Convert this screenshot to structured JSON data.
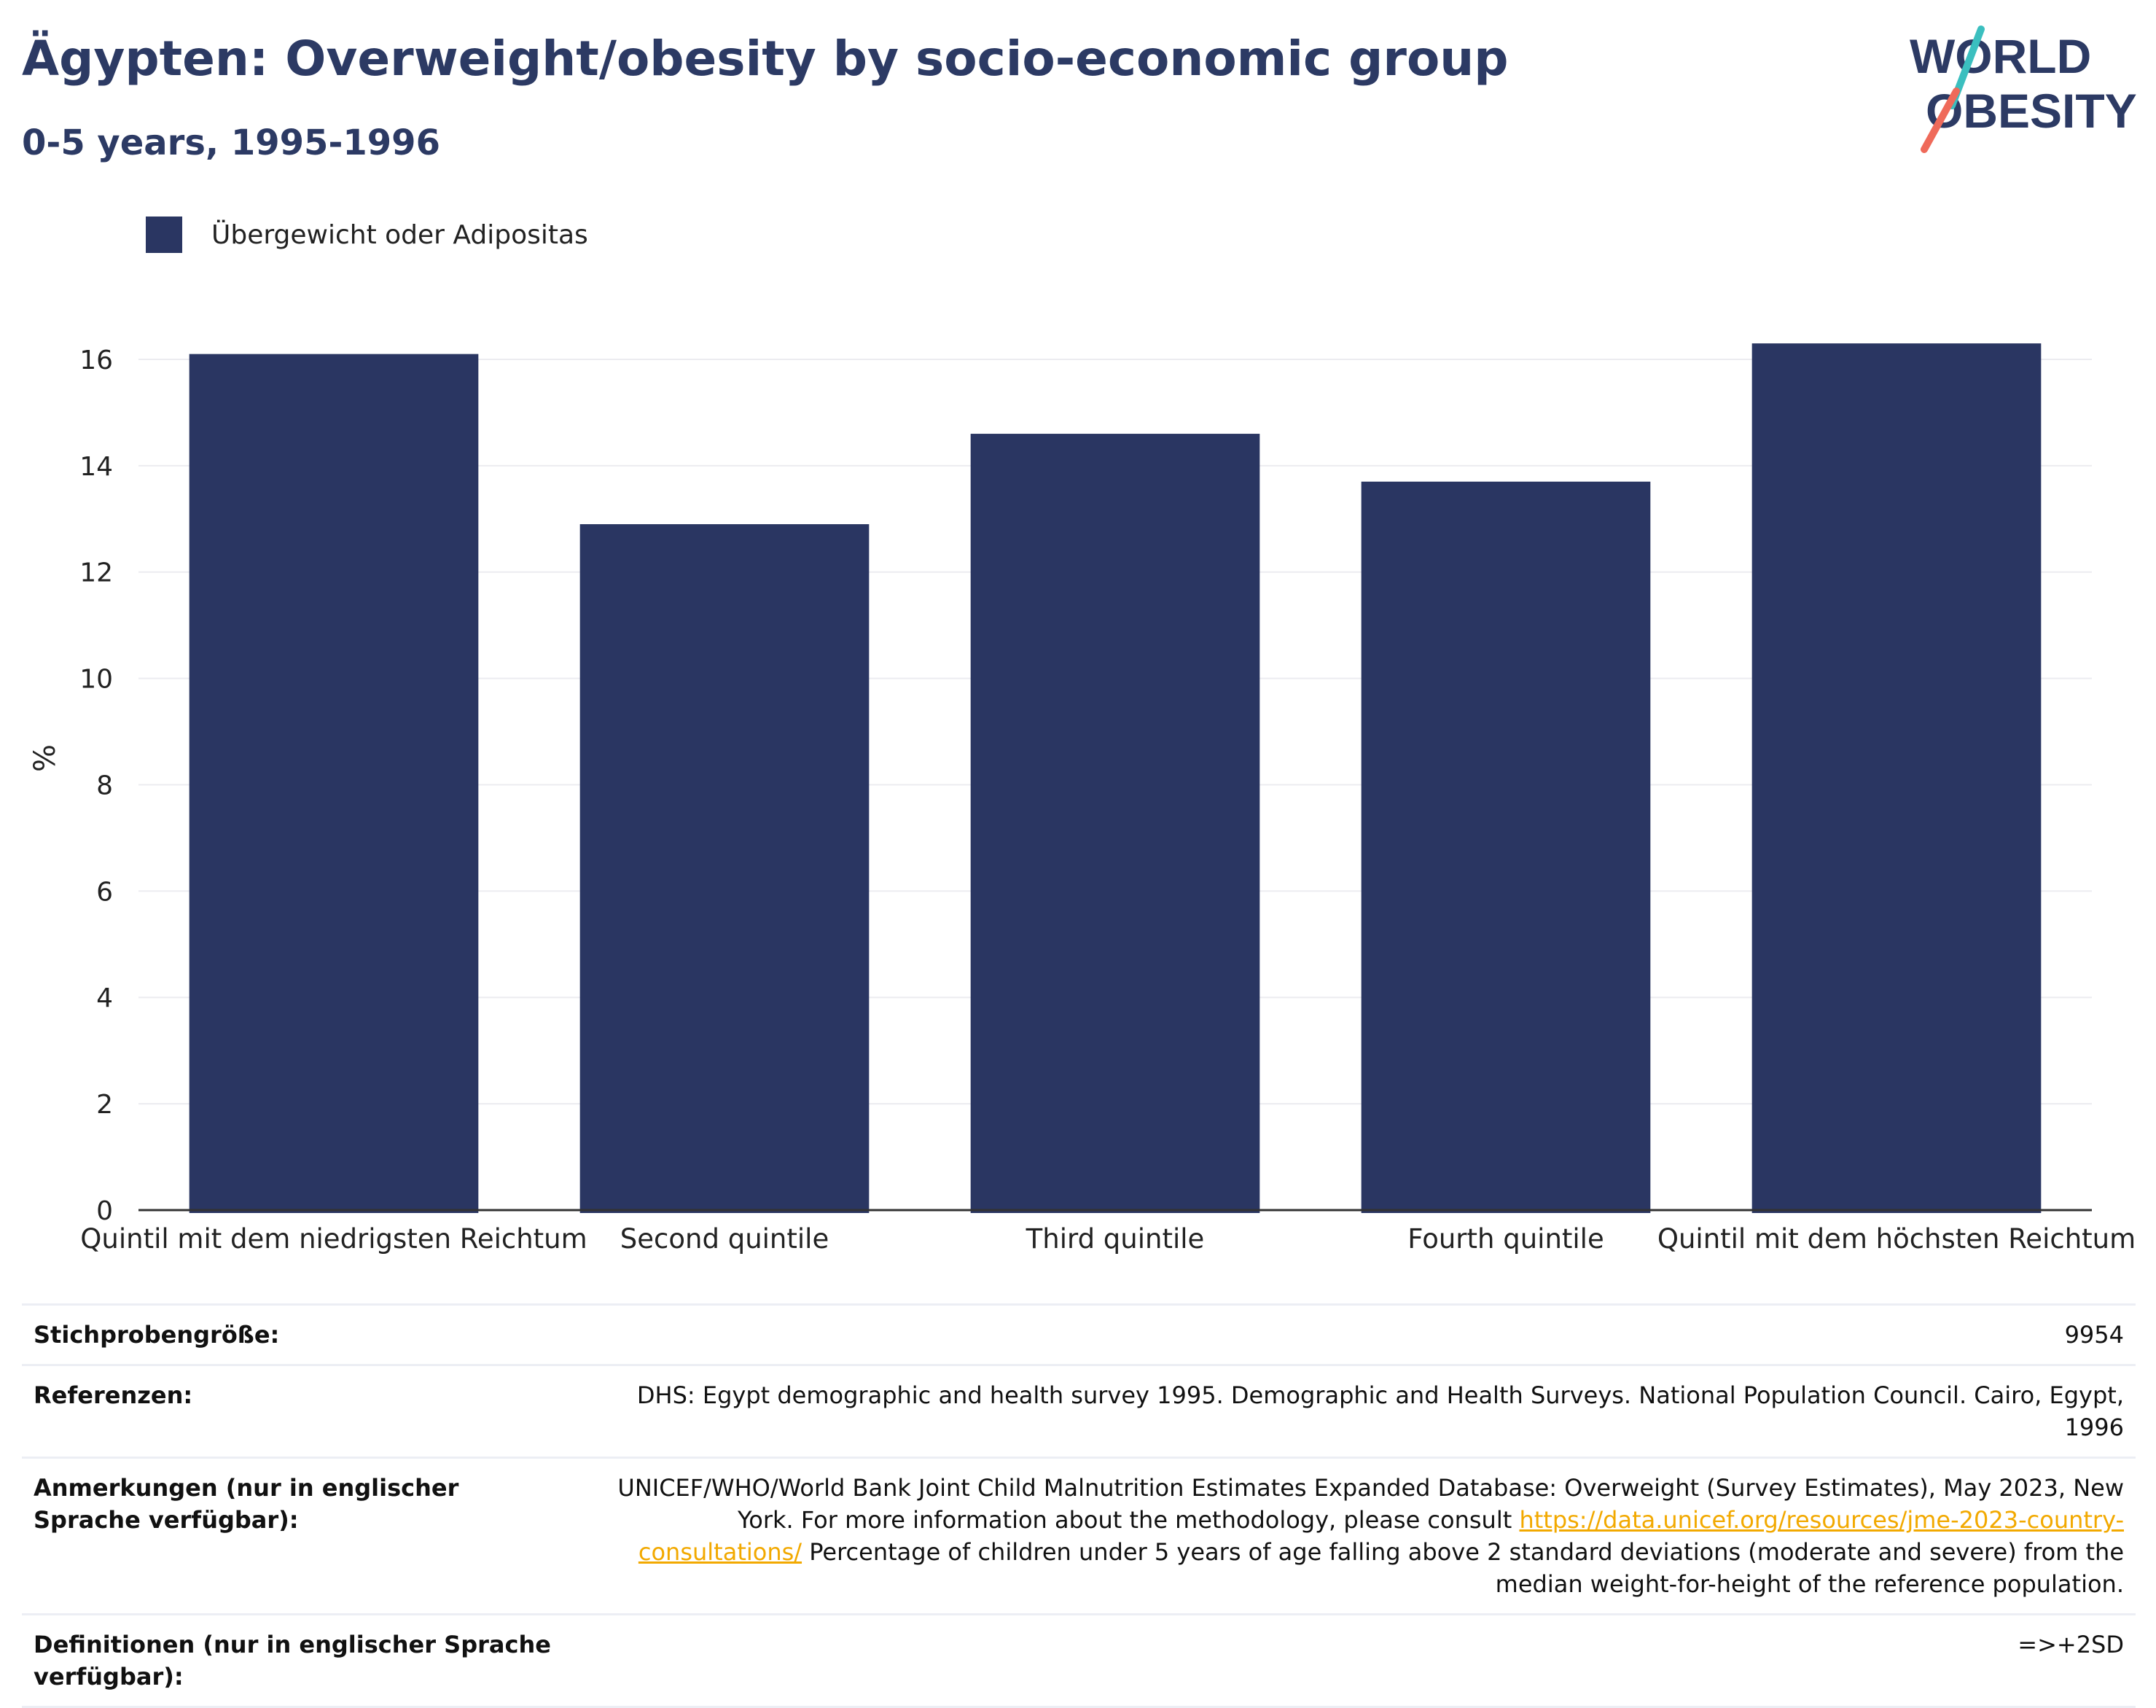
{
  "header": {
    "title": "Ägypten: Overweight/obesity by socio-economic group",
    "subtitle": "0-5 years, 1995-1996"
  },
  "logo": {
    "line1": "WORLD",
    "line2": "OBESITY"
  },
  "colors": {
    "bar": "#2a3662",
    "title": "#2c3a64",
    "link": "#f2a900",
    "logo_teal": "#3bbfbf",
    "logo_coral": "#ef6a5a"
  },
  "chart_data": {
    "type": "bar",
    "categories": [
      "Quintil mit dem niedrigsten Reichtum",
      "Second quintile",
      "Third quintile",
      "Fourth quintile",
      "Quintil mit dem höchsten Reichtum"
    ],
    "series": [
      {
        "name": "Übergewicht oder Adipositas",
        "values": [
          16.1,
          12.9,
          14.6,
          13.7,
          16.3
        ]
      }
    ],
    "ylabel": "%",
    "ylim": [
      0,
      17
    ],
    "yticks": [
      0,
      2,
      4,
      6,
      8,
      10,
      12,
      14,
      16
    ],
    "grid": true,
    "legend": "top-left"
  },
  "meta": {
    "sample_label": "Stichprobengröße:",
    "sample_value": "9954",
    "refs_label": "Referenzen:",
    "refs_value": "DHS: Egypt demographic and health survey 1995. Demographic and Health Surveys. National Population Council. Cairo, Egypt, 1996",
    "notes_label": "Anmerkungen (nur in englischer Sprache verfügbar):",
    "notes_text_1": "UNICEF/WHO/World Bank Joint Child Malnutrition Estimates Expanded Database: Overweight (Survey Estimates), May 2023, New York. For more information about the methodology, please consult ",
    "notes_link": "https://data.unicef.org/resources/jme-2023-country-consultations/",
    "notes_text_2": "Percentage of children under 5 years of age falling above 2 standard deviations (moderate and severe) from the median weight-for-height of the reference population.",
    "defs_label": "Definitionen (nur in englischer Sprache verfügbar):",
    "defs_value": "=>+2SD"
  }
}
